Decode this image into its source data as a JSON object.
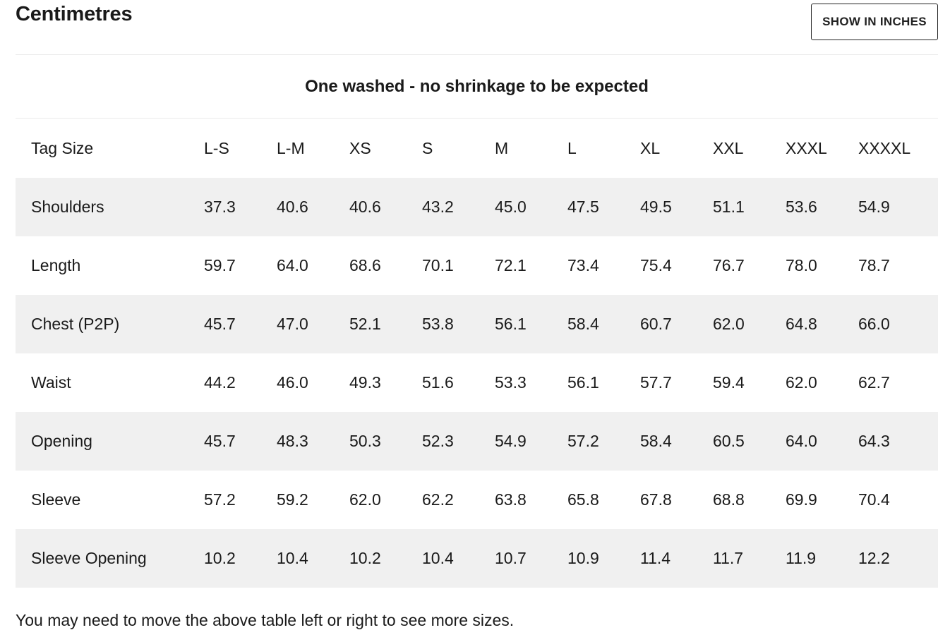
{
  "header": {
    "title": "Centimetres",
    "unit_toggle_label": "SHOW IN INCHES"
  },
  "note": "One washed - no shrinkage to be expected",
  "table": {
    "corner_label": "Tag Size",
    "sizes": [
      "L-S",
      "L-M",
      "XS",
      "S",
      "M",
      "L",
      "XL",
      "XXL",
      "XXXL",
      "XXXXL"
    ],
    "rows": [
      {
        "label": "Shoulders",
        "values": [
          "37.3",
          "40.6",
          "40.6",
          "43.2",
          "45.0",
          "47.5",
          "49.5",
          "51.1",
          "53.6",
          "54.9"
        ]
      },
      {
        "label": "Length",
        "values": [
          "59.7",
          "64.0",
          "68.6",
          "70.1",
          "72.1",
          "73.4",
          "75.4",
          "76.7",
          "78.0",
          "78.7"
        ]
      },
      {
        "label": "Chest (P2P)",
        "values": [
          "45.7",
          "47.0",
          "52.1",
          "53.8",
          "56.1",
          "58.4",
          "60.7",
          "62.0",
          "64.8",
          "66.0"
        ]
      },
      {
        "label": "Waist",
        "values": [
          "44.2",
          "46.0",
          "49.3",
          "51.6",
          "53.3",
          "56.1",
          "57.7",
          "59.4",
          "62.0",
          "62.7"
        ]
      },
      {
        "label": "Opening",
        "values": [
          "45.7",
          "48.3",
          "50.3",
          "52.3",
          "54.9",
          "57.2",
          "58.4",
          "60.5",
          "64.0",
          "64.3"
        ]
      },
      {
        "label": "Sleeve",
        "values": [
          "57.2",
          "59.2",
          "62.0",
          "62.2",
          "63.8",
          "65.8",
          "67.8",
          "68.8",
          "69.9",
          "70.4"
        ]
      },
      {
        "label": "Sleeve Opening",
        "values": [
          "10.2",
          "10.4",
          "10.2",
          "10.4",
          "10.7",
          "10.9",
          "11.4",
          "11.7",
          "11.9",
          "12.2"
        ]
      }
    ]
  },
  "footer_note": "You may need to move the above table left or right to see more sizes.",
  "colors": {
    "row_stripe": "#f0f0f0",
    "divider": "#eaeaea",
    "text": "#1a1a1a"
  }
}
